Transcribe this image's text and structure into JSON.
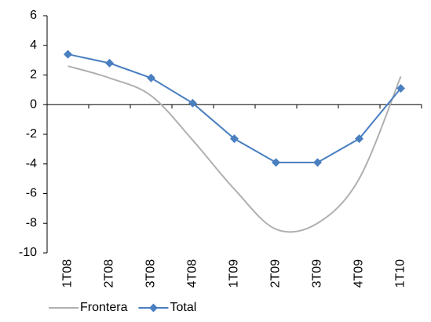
{
  "chart_data": {
    "type": "line",
    "categories": [
      "1T08",
      "2T08",
      "3T08",
      "4T08",
      "1T09",
      "2T09",
      "3T09",
      "4T09",
      "1T10"
    ],
    "series": [
      {
        "name": "Frontera",
        "color": "#b0b0b0",
        "smooth": true,
        "marker": "none",
        "values": [
          2.6,
          1.8,
          0.6,
          -2.4,
          -5.7,
          -8.4,
          -8.0,
          -5.0,
          1.9
        ]
      },
      {
        "name": "Total",
        "color": "#4a7fc0",
        "smooth": false,
        "marker": "diamond",
        "values": [
          3.4,
          2.8,
          1.8,
          0.1,
          -2.3,
          -3.9,
          -3.9,
          -2.3,
          1.1
        ]
      }
    ],
    "ylim": [
      -10,
      6
    ],
    "yticks": [
      -10,
      -8,
      -6,
      -4,
      -2,
      0,
      2,
      4,
      6
    ],
    "legend": "bottom"
  }
}
